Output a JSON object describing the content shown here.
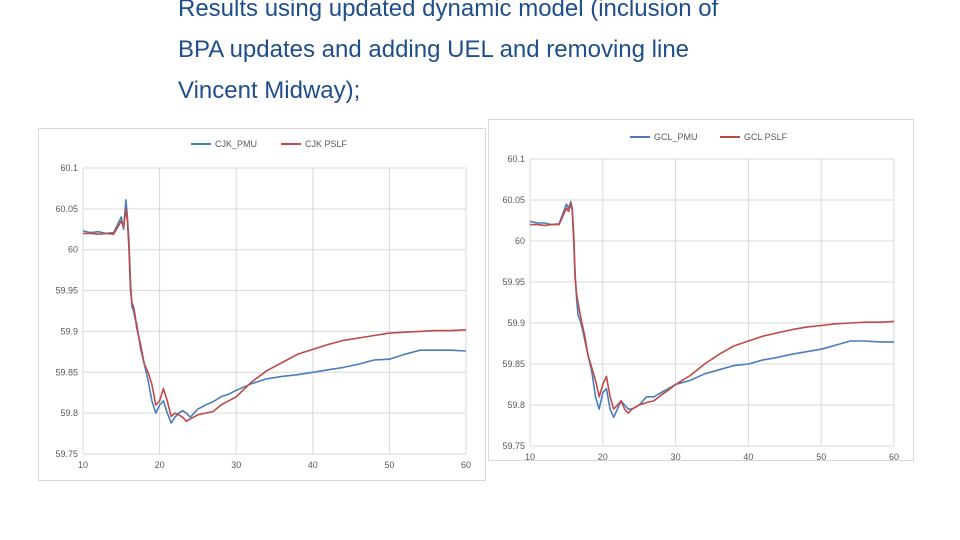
{
  "slide": {
    "title_lines": [
      "Results using updated dynamic model (inclusion of",
      "BPA updates and adding UEL and removing line",
      "Vincent Midway);"
    ]
  },
  "colors": {
    "pmu": "#4a7ebb",
    "pslf": "#be4b48",
    "grid": "#d9d9d9",
    "text": "#595959",
    "title": "#1f4e8c"
  },
  "chart_data": [
    {
      "type": "line",
      "title": "",
      "xlabel": "",
      "ylabel": "",
      "xlim": [
        10,
        60
      ],
      "ylim": [
        59.75,
        60.1
      ],
      "xticks": [
        10,
        20,
        30,
        40,
        50,
        60
      ],
      "xtick_labels": [
        "10",
        "20",
        "30",
        "40",
        "50",
        "60"
      ],
      "yticks": [
        59.75,
        59.8,
        59.85,
        59.9,
        59.95,
        60,
        60.05,
        60.1
      ],
      "ytick_labels": [
        "59.75",
        "59.8",
        "59.85",
        "59.9",
        "59.95",
        "60",
        "60.05",
        "60.1"
      ],
      "grid": true,
      "legend_position": "top",
      "series": [
        {
          "name": "CJK_PMU",
          "color": "#4a7ebb",
          "x": [
            10,
            11,
            12,
            13,
            14,
            15,
            15.3,
            15.6,
            15.8,
            16,
            16.2,
            16.4,
            16.6,
            16.8,
            17,
            17.5,
            18,
            18.5,
            19,
            19.5,
            20,
            20.5,
            21,
            21.5,
            22,
            22.5,
            23,
            23.5,
            24,
            25,
            26,
            27,
            28,
            29,
            30,
            32,
            34,
            36,
            38,
            40,
            42,
            44,
            46,
            48,
            50,
            52,
            54,
            56,
            58,
            60
          ],
          "y": [
            60.023,
            60.021,
            60.022,
            60.02,
            60.021,
            60.04,
            60.025,
            60.061,
            60.04,
            60.01,
            59.96,
            59.93,
            59.925,
            59.915,
            59.91,
            59.88,
            59.86,
            59.84,
            59.815,
            59.8,
            59.81,
            59.815,
            59.8,
            59.788,
            59.795,
            59.8,
            59.803,
            59.8,
            59.795,
            59.805,
            59.81,
            59.814,
            59.82,
            59.823,
            59.828,
            59.836,
            59.842,
            59.845,
            59.847,
            59.85,
            59.853,
            59.856,
            59.86,
            59.865,
            59.866,
            59.872,
            59.877,
            59.877,
            59.877,
            59.876
          ]
        },
        {
          "name": "CJK PSLF",
          "color": "#be4b48",
          "x": [
            10,
            11,
            12,
            13,
            14,
            15,
            15.3,
            15.6,
            15.8,
            16,
            16.2,
            16.4,
            16.6,
            16.8,
            17,
            17.5,
            18,
            18.5,
            19,
            19.5,
            20,
            20.5,
            21,
            21.5,
            22,
            22.5,
            23,
            23.5,
            24,
            25,
            26,
            27,
            28,
            29,
            30,
            32,
            34,
            36,
            38,
            40,
            42,
            44,
            46,
            48,
            50,
            52,
            54,
            56,
            58,
            60
          ],
          "y": [
            60.02,
            60.02,
            60.019,
            60.02,
            60.019,
            60.035,
            60.028,
            60.05,
            60.035,
            60.0,
            59.95,
            59.935,
            59.93,
            59.92,
            59.905,
            59.885,
            59.86,
            59.85,
            59.835,
            59.81,
            59.815,
            59.83,
            59.815,
            59.796,
            59.8,
            59.798,
            59.795,
            59.79,
            59.793,
            59.798,
            59.8,
            59.802,
            59.81,
            59.815,
            59.82,
            59.838,
            59.852,
            59.862,
            59.872,
            59.878,
            59.884,
            59.889,
            59.892,
            59.895,
            59.898,
            59.899,
            59.9,
            59.901,
            59.901,
            59.902
          ]
        }
      ]
    },
    {
      "type": "line",
      "title": "",
      "xlabel": "",
      "ylabel": "",
      "xlim": [
        10,
        60
      ],
      "ylim": [
        59.75,
        60.1
      ],
      "xticks": [
        10,
        20,
        30,
        40,
        50,
        60
      ],
      "xtick_labels": [
        "10",
        "20",
        "30",
        "40",
        "50",
        "60"
      ],
      "yticks": [
        59.75,
        59.8,
        59.85,
        59.9,
        59.95,
        60,
        60.05,
        60.1
      ],
      "ytick_labels": [
        "59.75",
        "59.8",
        "59.85",
        "59.9",
        "59.95",
        "60",
        "60.05",
        "60.1"
      ],
      "grid": true,
      "legend_position": "top",
      "series": [
        {
          "name": "GCL_PMU",
          "color": "#4a7ebb",
          "x": [
            10,
            11,
            12,
            13,
            14,
            15,
            15.3,
            15.6,
            15.8,
            16,
            16.2,
            16.4,
            16.6,
            16.8,
            17,
            17.5,
            18,
            18.5,
            19,
            19.5,
            20,
            20.5,
            21,
            21.5,
            22,
            22.5,
            23,
            23.5,
            24,
            25,
            26,
            27,
            28,
            29,
            30,
            32,
            34,
            36,
            38,
            40,
            42,
            44,
            46,
            48,
            50,
            52,
            54,
            56,
            58,
            60
          ],
          "y": [
            60.024,
            60.022,
            60.022,
            60.02,
            60.021,
            60.045,
            60.04,
            60.048,
            60.04,
            60.01,
            59.96,
            59.93,
            59.91,
            59.905,
            59.9,
            59.88,
            59.86,
            59.84,
            59.81,
            59.795,
            59.815,
            59.82,
            59.795,
            59.785,
            59.795,
            59.805,
            59.8,
            59.795,
            59.795,
            59.8,
            59.81,
            59.81,
            59.815,
            59.82,
            59.825,
            59.83,
            59.838,
            59.843,
            59.848,
            59.85,
            59.855,
            59.858,
            59.862,
            59.865,
            59.868,
            59.873,
            59.878,
            59.878,
            59.877,
            59.877
          ]
        },
        {
          "name": "GCL PSLF",
          "color": "#be4b48",
          "x": [
            10,
            11,
            12,
            13,
            14,
            15,
            15.3,
            15.6,
            15.8,
            16,
            16.2,
            16.4,
            16.6,
            16.8,
            17,
            17.5,
            18,
            18.5,
            19,
            19.5,
            20,
            20.5,
            21,
            21.5,
            22,
            22.5,
            23,
            23.5,
            24,
            25,
            26,
            27,
            28,
            29,
            30,
            32,
            34,
            36,
            38,
            40,
            42,
            44,
            46,
            48,
            50,
            52,
            54,
            56,
            58,
            60
          ],
          "y": [
            60.02,
            60.02,
            60.019,
            60.02,
            60.02,
            60.04,
            60.036,
            60.046,
            60.038,
            60.0,
            59.955,
            59.935,
            59.925,
            59.915,
            59.905,
            59.885,
            59.86,
            59.845,
            59.83,
            59.81,
            59.825,
            59.835,
            59.81,
            59.795,
            59.8,
            59.805,
            59.795,
            59.79,
            59.795,
            59.8,
            59.803,
            59.805,
            59.812,
            59.818,
            59.825,
            59.836,
            59.85,
            59.862,
            59.872,
            59.878,
            59.884,
            59.888,
            59.892,
            59.895,
            59.897,
            59.899,
            59.9,
            59.901,
            59.901,
            59.902
          ]
        }
      ]
    }
  ]
}
